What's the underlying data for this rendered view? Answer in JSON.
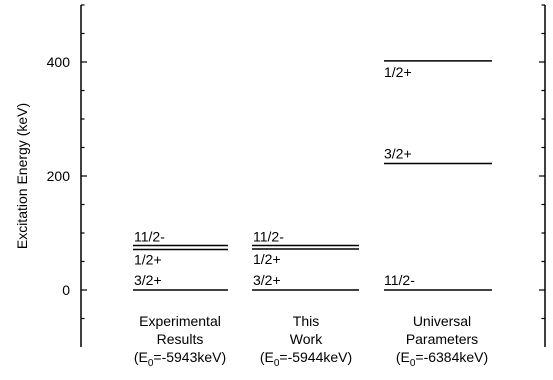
{
  "chart_data": {
    "type": "level-scheme",
    "ylabel": "Excitation Energy (keV)",
    "ylim": [
      -50,
      500
    ],
    "yticks": [
      0,
      200,
      400
    ],
    "columns": [
      {
        "label_lines": [
          "Experimental",
          "Results"
        ],
        "energy_prefix": "(E",
        "energy_sub": "0",
        "energy_value": "=-5943keV)",
        "levels": [
          {
            "label": "3/2+",
            "energy": 0
          },
          {
            "label": "1/2+",
            "energy": 71
          },
          {
            "label": "11/2-",
            "energy": 78
          }
        ]
      },
      {
        "label_lines": [
          "This",
          "Work"
        ],
        "energy_prefix": "(E",
        "energy_sub": "0",
        "energy_value": "=-5944keV)",
        "levels": [
          {
            "label": "3/2+",
            "energy": 0
          },
          {
            "label": "1/2+",
            "energy": 72
          },
          {
            "label": "11/2-",
            "energy": 78
          }
        ]
      },
      {
        "label_lines": [
          "Universal",
          "Parameters"
        ],
        "energy_prefix": "(E",
        "energy_sub": "0",
        "energy_value": "=-6384keV)",
        "levels": [
          {
            "label": "11/2-",
            "energy": 0
          },
          {
            "label": "3/2+",
            "energy": 222
          },
          {
            "label": "1/2+",
            "energy": 402
          }
        ]
      }
    ]
  }
}
